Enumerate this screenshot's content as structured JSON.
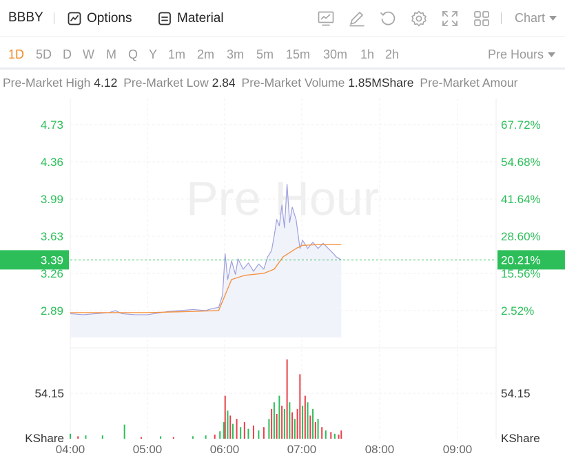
{
  "toolbar": {
    "ticker": "BBBY",
    "options_label": "Options",
    "material_label": "Material",
    "chart_type_label": "Chart",
    "tool_icons": [
      "chart-display-icon",
      "draw-pen-icon",
      "reset-icon",
      "settings-gear-icon",
      "fullscreen-icon",
      "layout-grid-icon"
    ]
  },
  "periods": {
    "items": [
      "1D",
      "5D",
      "D",
      "W",
      "M",
      "Q",
      "Y",
      "1m",
      "2m",
      "3m",
      "5m",
      "15m",
      "30m",
      "1h",
      "2h"
    ],
    "active": "1D",
    "session_label": "Pre Hours"
  },
  "stats": {
    "high_label": "Pre-Market High",
    "high_value": "4.12",
    "low_label": "Pre-Market Low",
    "low_value": "2.84",
    "volume_label": "Pre-Market Volume",
    "volume_value": "1.85MShare",
    "amount_label": "Pre-Market Amour"
  },
  "colors": {
    "up": "#2dbe5a",
    "down": "#e8404a",
    "price_line": "#9ea0de",
    "avg_line": "#f5923e",
    "accent": "#f08a26"
  },
  "chart_data": {
    "type": "line",
    "watermark": "Pre Hour",
    "x_ticks": [
      "04:00",
      "05:00",
      "06:00",
      "07:00",
      "08:00",
      "09:00"
    ],
    "price_ticks_left": [
      "4.73",
      "4.36",
      "3.99",
      "3.63",
      "3.26",
      "2.89"
    ],
    "price_ticks_right": [
      "67.72%",
      "54.68%",
      "41.64%",
      "28.60%",
      "15.56%",
      "2.52%"
    ],
    "current_price": "3.39",
    "current_change": "20.21%",
    "ylim": [
      2.54,
      4.95
    ],
    "volume_tick": "54.15",
    "volume_unit": "KShare",
    "price_series": {
      "name": "Price",
      "points": [
        [
          "04:00",
          2.87
        ],
        [
          "04:10",
          2.86
        ],
        [
          "04:20",
          2.87
        ],
        [
          "04:30",
          2.88
        ],
        [
          "04:35",
          2.9
        ],
        [
          "04:40",
          2.87
        ],
        [
          "04:50",
          2.86
        ],
        [
          "05:00",
          2.86
        ],
        [
          "05:10",
          2.88
        ],
        [
          "05:15",
          2.89
        ],
        [
          "05:25",
          2.9
        ],
        [
          "05:35",
          2.91
        ],
        [
          "05:45",
          2.9
        ],
        [
          "05:50",
          2.92
        ],
        [
          "05:55",
          2.93
        ],
        [
          "05:58",
          3.05
        ],
        [
          "06:00",
          3.45
        ],
        [
          "06:02",
          3.2
        ],
        [
          "06:05",
          3.38
        ],
        [
          "06:08",
          3.25
        ],
        [
          "06:10",
          3.4
        ],
        [
          "06:14",
          3.3
        ],
        [
          "06:18",
          3.36
        ],
        [
          "06:22",
          3.28
        ],
        [
          "06:26",
          3.35
        ],
        [
          "06:30",
          3.3
        ],
        [
          "06:33",
          3.42
        ],
        [
          "06:36",
          3.48
        ],
        [
          "06:38",
          3.62
        ],
        [
          "06:40",
          3.78
        ],
        [
          "06:42",
          3.72
        ],
        [
          "06:44",
          3.92
        ],
        [
          "06:46",
          3.7
        ],
        [
          "06:48",
          4.12
        ],
        [
          "06:50",
          3.75
        ],
        [
          "06:52",
          3.9
        ],
        [
          "06:55",
          3.78
        ],
        [
          "06:58",
          3.5
        ],
        [
          "07:00",
          3.58
        ],
        [
          "07:04",
          3.5
        ],
        [
          "07:08",
          3.56
        ],
        [
          "07:12",
          3.5
        ],
        [
          "07:16",
          3.55
        ],
        [
          "07:20",
          3.5
        ],
        [
          "07:24",
          3.45
        ],
        [
          "07:26",
          3.42
        ],
        [
          "07:30",
          3.39
        ]
      ]
    },
    "avg_series": {
      "name": "Average",
      "points": [
        [
          "04:00",
          2.88
        ],
        [
          "04:30",
          2.88
        ],
        [
          "05:00",
          2.88
        ],
        [
          "05:30",
          2.89
        ],
        [
          "05:55",
          2.9
        ],
        [
          "06:00",
          3.05
        ],
        [
          "06:05",
          3.2
        ],
        [
          "06:15",
          3.24
        ],
        [
          "06:30",
          3.26
        ],
        [
          "06:38",
          3.3
        ],
        [
          "06:45",
          3.42
        ],
        [
          "06:55",
          3.5
        ],
        [
          "07:00",
          3.53
        ],
        [
          "07:15",
          3.54
        ],
        [
          "07:30",
          3.54
        ]
      ]
    },
    "volume_series": {
      "name": "Volume",
      "unit": "KShare",
      "bars": [
        [
          "04:00",
          6,
          "up"
        ],
        [
          "04:06",
          3,
          "down"
        ],
        [
          "04:12",
          4,
          "up"
        ],
        [
          "04:25",
          4,
          "up"
        ],
        [
          "04:42",
          17,
          "up"
        ],
        [
          "04:55",
          2,
          "down"
        ],
        [
          "05:10",
          3,
          "up"
        ],
        [
          "05:20",
          2,
          "down"
        ],
        [
          "05:35",
          3,
          "up"
        ],
        [
          "05:45",
          4,
          "up"
        ],
        [
          "05:52",
          5,
          "down"
        ],
        [
          "05:56",
          9,
          "up"
        ],
        [
          "05:59",
          20,
          "up"
        ],
        [
          "06:00",
          52,
          "down"
        ],
        [
          "06:02",
          34,
          "up"
        ],
        [
          "06:04",
          28,
          "down"
        ],
        [
          "06:06",
          18,
          "up"
        ],
        [
          "06:09",
          24,
          "down"
        ],
        [
          "06:12",
          14,
          "up"
        ],
        [
          "06:15",
          20,
          "down"
        ],
        [
          "06:18",
          12,
          "up"
        ],
        [
          "06:22",
          16,
          "down"
        ],
        [
          "06:26",
          10,
          "up"
        ],
        [
          "06:30",
          14,
          "down"
        ],
        [
          "06:34",
          24,
          "up"
        ],
        [
          "06:36",
          36,
          "down"
        ],
        [
          "06:38",
          44,
          "up"
        ],
        [
          "06:40",
          30,
          "down"
        ],
        [
          "06:42",
          52,
          "up"
        ],
        [
          "06:44",
          40,
          "down"
        ],
        [
          "06:46",
          36,
          "up"
        ],
        [
          "06:48",
          96,
          "down"
        ],
        [
          "06:50",
          44,
          "up"
        ],
        [
          "06:52",
          32,
          "down"
        ],
        [
          "06:54",
          24,
          "up"
        ],
        [
          "06:56",
          36,
          "down"
        ],
        [
          "06:58",
          78,
          "down"
        ],
        [
          "07:00",
          40,
          "up"
        ],
        [
          "07:02",
          52,
          "down"
        ],
        [
          "07:04",
          44,
          "up"
        ],
        [
          "07:06",
          28,
          "down"
        ],
        [
          "07:08",
          36,
          "up"
        ],
        [
          "07:10",
          20,
          "down"
        ],
        [
          "07:12",
          24,
          "up"
        ],
        [
          "07:15",
          14,
          "down"
        ],
        [
          "07:18",
          10,
          "up"
        ],
        [
          "07:22",
          8,
          "down"
        ],
        [
          "07:25",
          6,
          "up"
        ],
        [
          "07:28",
          5,
          "down"
        ],
        [
          "07:30",
          10,
          "down"
        ]
      ]
    }
  }
}
